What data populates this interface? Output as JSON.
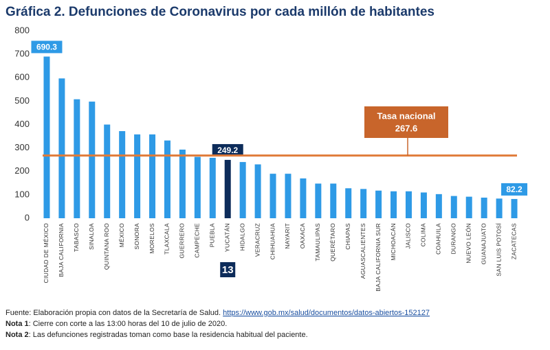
{
  "chart_data": {
    "type": "bar",
    "title": "Gráfica 2. Defunciones de Coronavirus por cada millón de habitantes",
    "title_color": "#1b3a6b",
    "categories": [
      "CIUDAD DE MÉXICO",
      "BAJA CALIFORNIA",
      "TABASCO",
      "SINALOA",
      "QUINTANA ROO",
      "MÉXICO",
      "SONORA",
      "MORELOS",
      "TLAXCALA",
      "GUERRERO",
      "CAMPECHE",
      "PUEBLA",
      "YUCATÁN",
      "HIDALGO",
      "VERACRUZ",
      "CHIHUAHUA",
      "NAYARIT",
      "OAXACA",
      "TAMAULIPAS",
      "QUERÉTARO",
      "CHIAPAS",
      "AGUASCALIENTES",
      "BAJA CALIFORNIA SUR",
      "MICHOACÁN",
      "JALISCO",
      "COLIMA",
      "COAHUILA",
      "DURANGO",
      "NUEVO LEÓN",
      "GUANAJUATO",
      "SAN LUIS POTOSÍ",
      "ZACATECAS"
    ],
    "values": [
      690.3,
      597,
      508,
      498,
      400,
      372,
      358,
      358,
      332,
      293,
      262,
      258,
      249.2,
      240,
      230,
      190,
      190,
      170,
      148,
      148,
      128,
      125,
      118,
      115,
      115,
      110,
      103,
      95,
      92,
      88,
      84,
      82.2
    ],
    "value_labels": [
      "690.3",
      null,
      null,
      null,
      null,
      null,
      null,
      null,
      null,
      null,
      null,
      null,
      "249.2",
      null,
      null,
      null,
      null,
      null,
      null,
      null,
      null,
      null,
      null,
      null,
      null,
      null,
      null,
      null,
      null,
      null,
      null,
      "82.2"
    ],
    "colors": [
      "#2e9ae6",
      "#2e9ae6",
      "#2e9ae6",
      "#2e9ae6",
      "#2e9ae6",
      "#2e9ae6",
      "#2e9ae6",
      "#2e9ae6",
      "#2e9ae6",
      "#2e9ae6",
      "#2e9ae6",
      "#2e9ae6",
      "#0d2c5a",
      "#2e9ae6",
      "#2e9ae6",
      "#2e9ae6",
      "#2e9ae6",
      "#2e9ae6",
      "#2e9ae6",
      "#2e9ae6",
      "#2e9ae6",
      "#2e9ae6",
      "#2e9ae6",
      "#2e9ae6",
      "#2e9ae6",
      "#2e9ae6",
      "#2e9ae6",
      "#2e9ae6",
      "#2e9ae6",
      "#2e9ae6",
      "#2e9ae6",
      "#2e9ae6"
    ],
    "ylim": [
      0,
      800
    ],
    "yticks": [
      0,
      100,
      200,
      300,
      400,
      500,
      600,
      700,
      800
    ],
    "grid": false,
    "reference_line": {
      "label": "Tasa nacional",
      "value": 267.6,
      "color": "#e07b39",
      "box_color": "#c8652b"
    },
    "rank_badge": {
      "value": 13,
      "index": 12,
      "color": "#0d2c5a"
    }
  },
  "notes": [
    {
      "label": "Fuente",
      "text": ": Elaboración propia con datos de la Secretaría de Salud. ",
      "link": "https://www.gob.mx/salud/documentos/datos-abiertos-152127",
      "bold": false
    },
    {
      "label": "Nota 1",
      "text": ": Cierre con corte a las 13:00 horas del 10 de julio de 2020.",
      "bold": true
    },
    {
      "label": "Nota 2",
      "text": ": Las defunciones registradas toman como base la residencia habitual del paciente.",
      "bold": true
    }
  ]
}
